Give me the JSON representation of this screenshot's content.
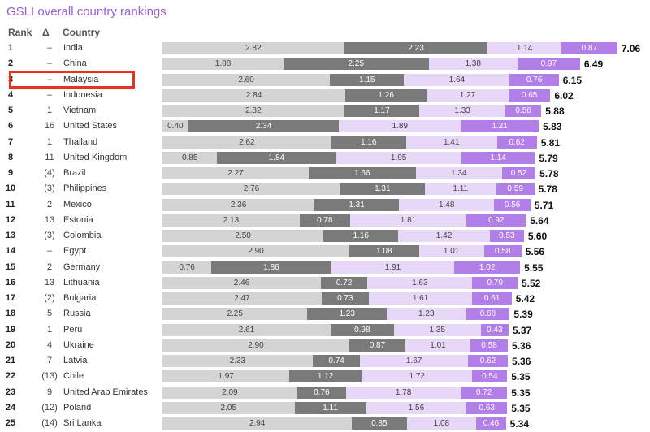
{
  "chart_data": {
    "type": "bar",
    "stacked": true,
    "orientation": "horizontal",
    "title": "GSLI overall country rankings",
    "columns": {
      "rank": "Rank",
      "delta": "Δ",
      "country": "Country"
    },
    "highlighted_country": "Malaysia",
    "colors": [
      "#d4d4d4",
      "#7a7a7a",
      "#e7d8f7",
      "#b27ee8"
    ],
    "highlight_color": "#e8321e",
    "rows": [
      {
        "rank": "1",
        "delta": "–",
        "country": "India",
        "values": [
          "2.82",
          "2.23",
          "1.14",
          "0.87"
        ],
        "total": "7.06"
      },
      {
        "rank": "2",
        "delta": "–",
        "country": "China",
        "values": [
          "1.88",
          "2.25",
          "1.38",
          "0.97"
        ],
        "total": "6.49"
      },
      {
        "rank": "3",
        "delta": "–",
        "country": "Malaysia",
        "values": [
          "2.60",
          "1.15",
          "1.64",
          "0.76"
        ],
        "total": "6.15"
      },
      {
        "rank": "4",
        "delta": "–",
        "country": "Indonesia",
        "values": [
          "2.84",
          "1.26",
          "1.27",
          "0.65"
        ],
        "total": "6.02"
      },
      {
        "rank": "5",
        "delta": "1",
        "country": "Vietnam",
        "values": [
          "2.82",
          "1.17",
          "1.33",
          "0.56"
        ],
        "total": "5.88"
      },
      {
        "rank": "6",
        "delta": "16",
        "country": "United States",
        "values": [
          "0.40",
          "2.34",
          "1.89",
          "1.21"
        ],
        "total": "5.83"
      },
      {
        "rank": "7",
        "delta": "1",
        "country": "Thailand",
        "values": [
          "2.62",
          "1.16",
          "1.41",
          "0.62"
        ],
        "total": "5.81"
      },
      {
        "rank": "8",
        "delta": "11",
        "country": "United Kingdom",
        "values": [
          "0.85",
          "1.84",
          "1.95",
          "1.14"
        ],
        "total": "5.79"
      },
      {
        "rank": "9",
        "delta": "(4)",
        "country": "Brazil",
        "values": [
          "2.27",
          "1.66",
          "1.34",
          "0.52"
        ],
        "total": "5.78"
      },
      {
        "rank": "10",
        "delta": "(3)",
        "country": "Philippines",
        "values": [
          "2.76",
          "1.31",
          "1.11",
          "0.59"
        ],
        "total": "5.78"
      },
      {
        "rank": "11",
        "delta": "2",
        "country": "Mexico",
        "values": [
          "2.36",
          "1.31",
          "1.48",
          "0.56"
        ],
        "total": "5.71"
      },
      {
        "rank": "12",
        "delta": "13",
        "country": "Estonia",
        "values": [
          "2.13",
          "0.78",
          "1.81",
          "0.92"
        ],
        "total": "5.64"
      },
      {
        "rank": "13",
        "delta": "(3)",
        "country": "Colombia",
        "values": [
          "2.50",
          "1.16",
          "1.42",
          "0.53"
        ],
        "total": "5.60"
      },
      {
        "rank": "14",
        "delta": "–",
        "country": "Egypt",
        "values": [
          "2.90",
          "1.08",
          "1.01",
          "0.58"
        ],
        "total": "5.56"
      },
      {
        "rank": "15",
        "delta": "2",
        "country": "Germany",
        "values": [
          "0.76",
          "1.86",
          "1.91",
          "1.02"
        ],
        "total": "5.55"
      },
      {
        "rank": "16",
        "delta": "13",
        "country": "Lithuania",
        "values": [
          "2.46",
          "0.72",
          "1.63",
          "0.70"
        ],
        "total": "5.52"
      },
      {
        "rank": "17",
        "delta": "(2)",
        "country": "Bulgaria",
        "values": [
          "2.47",
          "0.73",
          "1.61",
          "0.61"
        ],
        "total": "5.42"
      },
      {
        "rank": "18",
        "delta": "5",
        "country": "Russia",
        "values": [
          "2.25",
          "1.23",
          "1.23",
          "0.68"
        ],
        "total": "5.39"
      },
      {
        "rank": "19",
        "delta": "1",
        "country": "Peru",
        "values": [
          "2.61",
          "0.98",
          "1.35",
          "0.43"
        ],
        "total": "5.37"
      },
      {
        "rank": "20",
        "delta": "4",
        "country": "Ukraine",
        "values": [
          "2.90",
          "0.87",
          "1.01",
          "0.58"
        ],
        "total": "5.36"
      },
      {
        "rank": "21",
        "delta": "7",
        "country": "Latvia",
        "values": [
          "2.33",
          "0.74",
          "1.67",
          "0.62"
        ],
        "total": "5.36"
      },
      {
        "rank": "22",
        "delta": "(13)",
        "country": "Chile",
        "values": [
          "1.97",
          "1.12",
          "1.72",
          "0.54"
        ],
        "total": "5.35"
      },
      {
        "rank": "23",
        "delta": "9",
        "country": "United Arab Emirates",
        "values": [
          "2.09",
          "0.76",
          "1.78",
          "0.72"
        ],
        "total": "5.35"
      },
      {
        "rank": "24",
        "delta": "(12)",
        "country": "Poland",
        "values": [
          "2.05",
          "1.11",
          "1.56",
          "0.63"
        ],
        "total": "5.35"
      },
      {
        "rank": "25",
        "delta": "(14)",
        "country": "Sri Lanka",
        "values": [
          "2.94",
          "0.85",
          "1.08",
          "0.46"
        ],
        "total": "5.34"
      }
    ]
  }
}
